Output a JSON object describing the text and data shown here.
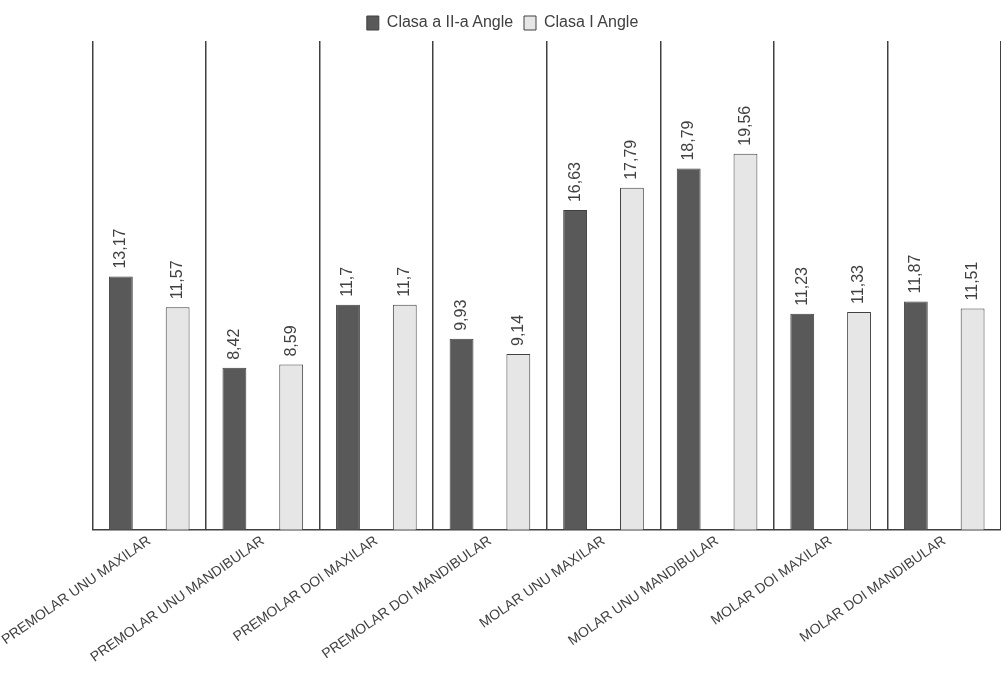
{
  "chart_data": {
    "type": "bar",
    "categories": [
      "PREMOLAR UNU MAXILAR",
      "PREMOLAR UNU MANDIBULAR",
      "PREMOLAR DOI MAXILAR",
      "PREMOLAR DOI MANDIBULAR",
      "MOLAR UNU MAXILAR",
      "MOLAR UNU MANDIBULAR",
      "MOLAR DOI MAXILAR",
      "MOLAR DOI MANDIBULAR"
    ],
    "series": [
      {
        "name": "Clasa a II-a Angle",
        "color": "#595959",
        "values": [
          13.17,
          8.42,
          11.7,
          9.93,
          16.63,
          18.79,
          11.23,
          11.87
        ],
        "value_labels": [
          "13,17",
          "8,42",
          "11,7",
          "9,93",
          "16,63",
          "18,79",
          "11,23",
          "11,87"
        ]
      },
      {
        "name": "Clasa I Angle",
        "color": "#e6e6e6",
        "values": [
          11.57,
          8.59,
          11.7,
          9.14,
          17.79,
          19.56,
          11.33,
          11.51
        ],
        "value_labels": [
          "11,57",
          "8,59",
          "11,7",
          "9,14",
          "17,79",
          "19,56",
          "11,33",
          "11,51"
        ]
      }
    ],
    "grid": "x",
    "legend": "top",
    "tick_labels": "x"
  }
}
